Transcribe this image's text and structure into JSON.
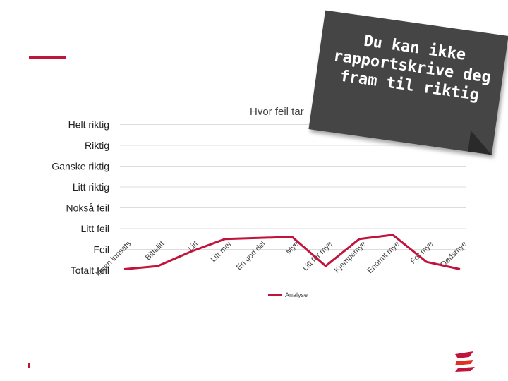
{
  "chart_data": {
    "type": "line",
    "title": "Hvor feil tar",
    "y_categories": [
      "Totalt feil",
      "Feil",
      "Litt feil",
      "Nokså feil",
      "Litt riktig",
      "Ganske riktig",
      "Riktig",
      "Helt riktig"
    ],
    "categories": [
      "Ingen innsats",
      "Bittelitt",
      "Litt",
      "Litt mer",
      "En god del",
      "Mye",
      "Litt for mye",
      "Kjempemye",
      "Enormt mye",
      "For mye",
      "Dødsmye"
    ],
    "series": [
      {
        "name": "Analyse",
        "values": [
          0.05,
          0.2,
          0.9,
          1.5,
          1.55,
          1.6,
          0.2,
          1.5,
          1.7,
          0.4,
          0.05
        ]
      }
    ],
    "ylim": [
      0,
      7
    ],
    "grid": true,
    "legend": "bottom"
  },
  "note": {
    "text": "Du kan ikke rapportskrive deg fram til riktig"
  },
  "colors": {
    "accent": "#c0143c",
    "note_bg": "#454545"
  }
}
